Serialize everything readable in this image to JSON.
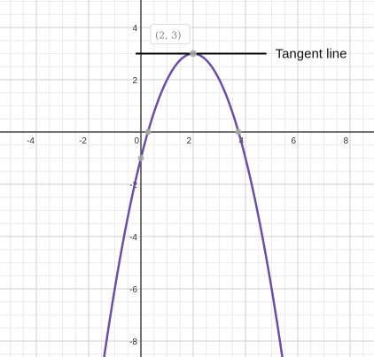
{
  "chart_data": {
    "type": "line",
    "title": "",
    "xlabel": "",
    "ylabel": "",
    "xlim": [
      -5.2,
      9.0
    ],
    "ylim": [
      -8.5,
      5.0
    ],
    "x_ticks": [
      -4,
      -2,
      0,
      2,
      4,
      6,
      8
    ],
    "x_tick_labels": [
      "-4",
      "-2",
      "0",
      "2",
      "4",
      "6",
      "8"
    ],
    "y_ticks": [
      -8,
      -6,
      -4,
      -2,
      2,
      4
    ],
    "y_tick_labels": [
      "-8",
      "-6",
      "-4",
      "-2",
      "2",
      "4"
    ],
    "grid": true,
    "series": [
      {
        "equation": "y = -(x - 2)^2 + 3",
        "a": -1,
        "h": 2,
        "k": 3,
        "color": "#6a4fa8"
      }
    ],
    "highlighted_points": [
      {
        "x": 2,
        "y": 3,
        "label": "(2, 3)"
      },
      {
        "x": 0.27,
        "y": 0
      },
      {
        "x": 3.73,
        "y": 0
      },
      {
        "x": 0,
        "y": -1
      }
    ],
    "tangent_line": {
      "y": 3,
      "x_from": -0.2,
      "x_to": 4.8,
      "label": "Tangent line",
      "color": "#000000"
    }
  }
}
